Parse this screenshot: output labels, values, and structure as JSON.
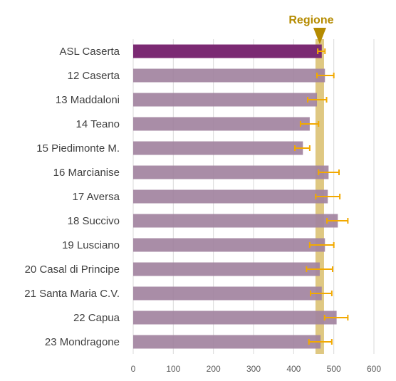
{
  "chart_data": {
    "type": "bar",
    "orientation": "horizontal",
    "categories": [
      "ASL Caserta",
      "12 Caserta",
      "13 Maddaloni",
      "14 Teano",
      "15 Piedimonte M.",
      "16 Marcianise",
      "17 Aversa",
      "18 Succivo",
      "19 Lusciano",
      "20 Casal di Principe",
      "21 Santa Maria C.V.",
      "22 Capua",
      "23 Mondragone"
    ],
    "values": [
      470,
      478,
      458,
      440,
      423,
      487,
      485,
      510,
      478,
      465,
      470,
      507,
      467
    ],
    "error_low": [
      460,
      458,
      435,
      417,
      403,
      462,
      455,
      483,
      440,
      432,
      442,
      477,
      438
    ],
    "error_high": [
      478,
      500,
      482,
      462,
      440,
      513,
      515,
      535,
      500,
      497,
      495,
      535,
      495
    ],
    "highlight_index": 0,
    "reference": {
      "label": "Regione",
      "value": 465
    },
    "xlim": [
      0,
      600
    ],
    "xticks": [
      0,
      100,
      200,
      300,
      400,
      500,
      600
    ],
    "grid": true,
    "colors": {
      "highlight_bar": "#7b2a73",
      "bar": "#a283a0",
      "error": "#f2a900",
      "reference": "#d9be6c",
      "reference_marker": "#b58b00",
      "grid": "#d9d9d9"
    }
  }
}
